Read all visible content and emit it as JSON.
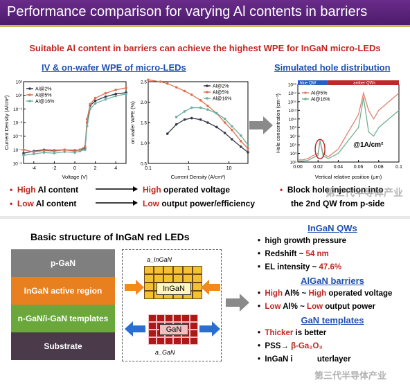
{
  "header": {
    "title": "Performance comparison for varying Al contents in barriers"
  },
  "top": {
    "headline": "Suitable Al content in barriers can achieve the highest WPE for InGaN micro-LEDs",
    "left_title": "IV & on-wafer WPE of micro-LEDs",
    "right_title": "Simulated hole distribution",
    "bullets": [
      {
        "a": "High",
        "b": "Al content",
        "c": "High",
        "d": "operated voltage"
      },
      {
        "a": "Low",
        "b": "Al content",
        "c": "Low",
        "d": "output power/efficiency"
      }
    ],
    "right_bullet_1": "Block hole injection into",
    "right_bullet_2": "the 2nd QW from p-side",
    "annot_current": "@1A/cm²",
    "band_left": "blue QW",
    "band_right": "amber QWs",
    "watermark": "第三代半导体产业"
  },
  "chart_data": [
    {
      "type": "line",
      "xlabel": "Voltage (V)",
      "ylabel": "Current Density (A/cm²)",
      "xlim": [
        -5,
        5
      ],
      "x_ticks": [
        "-4",
        "-2",
        "0",
        "2",
        "4"
      ],
      "y_ticks": [
        "10³",
        "10¹",
        "10⁻¹",
        "10⁻³",
        "10⁻⁵",
        "10⁻⁷",
        "10⁻⁹"
      ],
      "legend": "top-left",
      "series": [
        {
          "name": "Al@2%",
          "color": "#333a4a",
          "x": [
            -5,
            -4,
            -3,
            -2,
            -1,
            0,
            0.5,
            1,
            1.2,
            1.5,
            2,
            3,
            4,
            5
          ],
          "y": [
            -7.5,
            -7.2,
            -7.0,
            -7.1,
            -7.0,
            -7.1,
            -7.0,
            -6.8,
            -3,
            -0.5,
            0.2,
            0.8,
            1.2,
            1.4
          ]
        },
        {
          "name": "Al@5%",
          "color": "#e07050",
          "x": [
            -5,
            -4,
            -3,
            -2,
            -1,
            0,
            0.5,
            1,
            1.2,
            1.5,
            2,
            3,
            4,
            5
          ],
          "y": [
            -7.0,
            -7.3,
            -7.1,
            -7.2,
            -7.0,
            -7.2,
            -7.0,
            -6.5,
            -2.5,
            -0.3,
            0.6,
            1.3,
            1.8,
            2.1
          ]
        },
        {
          "name": "Al@16%",
          "color": "#6ab0a0",
          "x": [
            -5,
            -4,
            -3,
            -2,
            -1,
            0,
            0.5,
            1,
            1.2,
            1.5,
            2,
            3,
            4,
            5
          ],
          "y": [
            -7.8,
            -7.6,
            -7.4,
            -7.5,
            -7.3,
            -7.4,
            -7.2,
            -7.0,
            -3.5,
            -1.0,
            -0.2,
            0.4,
            0.9,
            1.2
          ]
        }
      ]
    },
    {
      "type": "line",
      "xlabel": "Current Density (A/cm²)",
      "ylabel": "on wafer WPE (%)",
      "x_scale": "log",
      "xlim": [
        0.1,
        30
      ],
      "ylim": [
        0.4,
        2.6
      ],
      "x_ticks": [
        "0.1",
        "1",
        "10"
      ],
      "y_ticks": [
        "2.5",
        "2.0",
        "1.5",
        "1.0",
        "0.5"
      ],
      "legend": "top-right",
      "series": [
        {
          "name": "Al@2%",
          "color": "#333a4a",
          "x": [
            0.3,
            0.5,
            0.8,
            1.2,
            2,
            3,
            5,
            8,
            12,
            20,
            30
          ],
          "y": [
            1.2,
            1.45,
            1.58,
            1.62,
            1.58,
            1.5,
            1.38,
            1.22,
            1.05,
            0.85,
            0.7
          ]
        },
        {
          "name": "Al@5%",
          "color": "#e07050",
          "x": [
            0.1,
            0.2,
            0.3,
            0.5,
            0.8,
            1.2,
            2,
            3,
            5,
            8,
            12,
            20,
            30
          ],
          "y": [
            2.65,
            2.6,
            2.55,
            2.45,
            2.35,
            2.25,
            2.1,
            1.95,
            1.75,
            1.5,
            1.3,
            1.0,
            0.8
          ]
        },
        {
          "name": "Al@16%",
          "color": "#6ab0a0",
          "x": [
            0.5,
            0.8,
            1.2,
            2,
            3,
            5,
            8,
            12,
            20,
            30
          ],
          "y": [
            1.65,
            1.8,
            1.9,
            1.9,
            1.85,
            1.75,
            1.6,
            1.4,
            1.15,
            0.9
          ]
        }
      ]
    },
    {
      "type": "line",
      "xlabel": "Vertical relative position (μm)",
      "ylabel": "Hole concentration (cm⁻³)",
      "xlim": [
        0,
        0.1
      ],
      "x_ticks": [
        "0.00",
        "0.02",
        "0.04",
        "0.06",
        "0.08",
        "0.1"
      ],
      "y_ticks": [
        "10¹⁹",
        "10¹⁷",
        "10¹⁵",
        "10¹³",
        "10¹¹",
        "10⁹",
        "10⁷",
        "10⁵",
        "10³",
        "10¹"
      ],
      "legend": "top-left",
      "series": [
        {
          "name": "Al@5%",
          "color": "#e08070",
          "x": [
            0,
            0.005,
            0.01,
            0.015,
            0.02,
            0.022,
            0.025,
            0.03,
            0.04,
            0.05,
            0.06,
            0.065,
            0.07,
            0.075,
            0.08,
            0.09,
            0.1
          ],
          "y": [
            1.5,
            1.5,
            1.8,
            2.5,
            3,
            6,
            3,
            2.2,
            4,
            8,
            12,
            17,
            13,
            11,
            13,
            15,
            17
          ]
        },
        {
          "name": "Al@16%",
          "color": "#70b090",
          "x": [
            0,
            0.005,
            0.01,
            0.015,
            0.02,
            0.022,
            0.025,
            0.03,
            0.04,
            0.05,
            0.06,
            0.065,
            0.07,
            0.075,
            0.08,
            0.09,
            0.1
          ],
          "y": [
            1.2,
            1.2,
            1.4,
            2,
            2.6,
            6,
            2.5,
            1.8,
            3,
            6,
            9,
            16,
            8,
            7,
            9,
            11,
            13
          ]
        }
      ]
    }
  ],
  "bottom": {
    "heading": "Basic structure of InGaN red LEDs",
    "layers": [
      "p-GaN",
      "InGaN active region",
      "n-GaN/i-GaN templates",
      "Substrate"
    ],
    "layer_colors": [
      "#7f7f7f",
      "#e8801f",
      "#6aa83c",
      "#4a3a4a"
    ],
    "lattice_top_label": "a_InGaN",
    "lattice_top_box": "InGaN",
    "lattice_bottom_box": "GaN",
    "lattice_bottom_label": "a_GaN",
    "qw_title": "InGaN QWs",
    "qw_items": [
      "high growth pressure",
      "Redshift ~",
      "54 nm",
      "EL intensity ~",
      "47.6%"
    ],
    "barrier_title": "AlGaN barriers",
    "barrier_items": [
      {
        "a": "High",
        "b": "Al% ~",
        "c": "High",
        "d": "operated voltage"
      },
      {
        "a": "Low",
        "b": "Al% ~",
        "c": "Low",
        "d": "output power"
      }
    ],
    "template_title": "GaN templates",
    "template_items": [
      "Thicker",
      "is better",
      "PSS→",
      "β-Ga₂O₃",
      "InGaN i",
      "uterlayer"
    ]
  }
}
